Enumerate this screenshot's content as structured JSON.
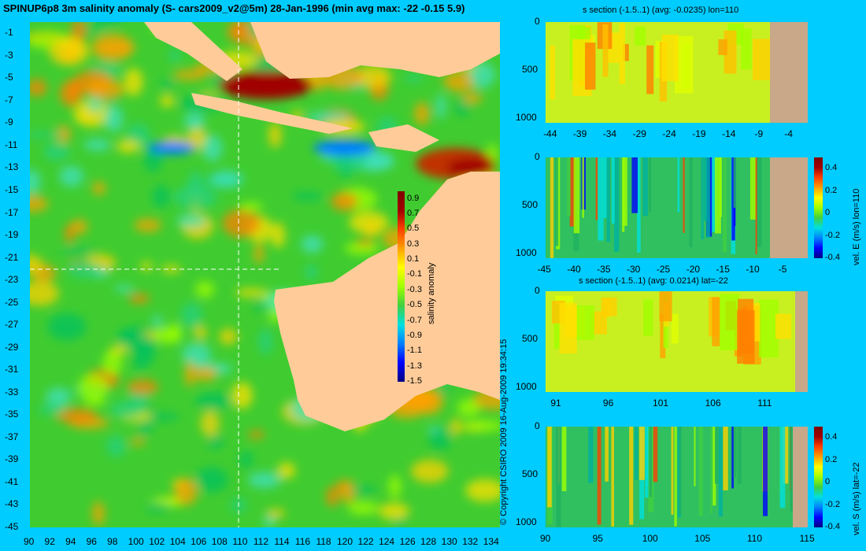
{
  "main": {
    "title": "SPINUP6p8 3m salinity anomaly (S- cars2009_v2@5m) 28-Jan-1996 (min avg max: -22 -0.15 5.9)",
    "copyright": "© Copyright CSIRO 2009  16-Aug-2009 19:34:15"
  },
  "colors": {
    "background": "#00ccff",
    "land": "#ffcc99",
    "section_land": "#c8a888",
    "scale": [
      "#000080",
      "#0000ff",
      "#0080ff",
      "#00e0e0",
      "#40d040",
      "#a0ff00",
      "#ffff00",
      "#ffa000",
      "#ff4000",
      "#a00000",
      "#800000"
    ]
  },
  "chart_data": [
    {
      "id": "map",
      "type": "heatmap",
      "title": "SPINUP6p8 3m salinity anomaly (S- cars2009_v2@5m) 28-Jan-1996 (min avg max: -22 -0.15 5.9)",
      "xlim": [
        90,
        135
      ],
      "ylim": [
        -45,
        0
      ],
      "x_ticks": [
        "90",
        "92",
        "94",
        "96",
        "98",
        "100",
        "102",
        "104",
        "106",
        "108",
        "110",
        "112",
        "114",
        "116",
        "118",
        "120",
        "122",
        "124",
        "126",
        "128",
        "130",
        "132",
        "134"
      ],
      "y_ticks": [
        "-1",
        "-3",
        "-5",
        "-7",
        "-9",
        "-11",
        "-13",
        "-15",
        "-17",
        "-19",
        "-21",
        "-23",
        "-25",
        "-27",
        "-29",
        "-31",
        "-33",
        "-35",
        "-37",
        "-39",
        "-41",
        "-43",
        "-45"
      ],
      "crosshair": {
        "lon": 110,
        "lat": -22
      },
      "colorbar": {
        "label": "salinity anomaly",
        "range": [
          -1.5,
          1.0
        ],
        "ticks": [
          "0.9",
          "0.7",
          "0.5",
          "0.3",
          "0.1",
          "-0.1",
          "-0.3",
          "-0.5",
          "-0.7",
          "-0.9",
          "-1.1",
          "-1.3",
          "-1.5"
        ]
      },
      "summary": {
        "min": -22,
        "avg": -0.15,
        "max": 5.9
      }
    },
    {
      "id": "s-section-lon110",
      "type": "heatmap",
      "title": "s section (-1.5..1) (avg: -0.0235) lon=110",
      "x_ticks": [
        "-44",
        "-39",
        "-34",
        "-29",
        "-24",
        "-19",
        "-14",
        "-9",
        "-4"
      ],
      "xlim": [
        -45,
        -1
      ],
      "y_ticks": [
        "0",
        "500",
        "1000"
      ],
      "ylim": [
        1050,
        0
      ]
    },
    {
      "id": "velE-section-lon110",
      "type": "heatmap",
      "title": "",
      "x_ticks": [
        "-45",
        "-40",
        "-35",
        "-30",
        "-25",
        "-20",
        "-15",
        "-10",
        "-5"
      ],
      "xlim": [
        -45,
        -1
      ],
      "y_ticks": [
        "0",
        "500",
        "1000"
      ],
      "ylim": [
        1050,
        0
      ],
      "colorbar": {
        "label": "vel. E (m/s) lon=110",
        "range": [
          -0.4,
          0.5
        ],
        "ticks": [
          "0.4",
          "0.2",
          "0",
          "-0.2",
          "-0.4"
        ]
      }
    },
    {
      "id": "s-section-lat-22",
      "type": "heatmap",
      "title": "s section (-1.5..1) (avg: 0.0214) lat=-22",
      "x_ticks": [
        "91",
        "96",
        "101",
        "106",
        "111"
      ],
      "xlim": [
        90,
        115
      ],
      "y_ticks": [
        "0",
        "500",
        "1000"
      ],
      "ylim": [
        1050,
        0
      ]
    },
    {
      "id": "velS-section-lat-22",
      "type": "heatmap",
      "title": "",
      "x_ticks": [
        "90",
        "95",
        "100",
        "105",
        "110",
        "115"
      ],
      "xlim": [
        90,
        115
      ],
      "y_ticks": [
        "0",
        "500",
        "1000"
      ],
      "ylim": [
        1050,
        0
      ],
      "colorbar": {
        "label": "vel. S (m/s) lat=-22",
        "range": [
          -0.4,
          0.5
        ],
        "ticks": [
          "0.4",
          "0.2",
          "0",
          "-0.2",
          "-0.4"
        ]
      }
    }
  ]
}
